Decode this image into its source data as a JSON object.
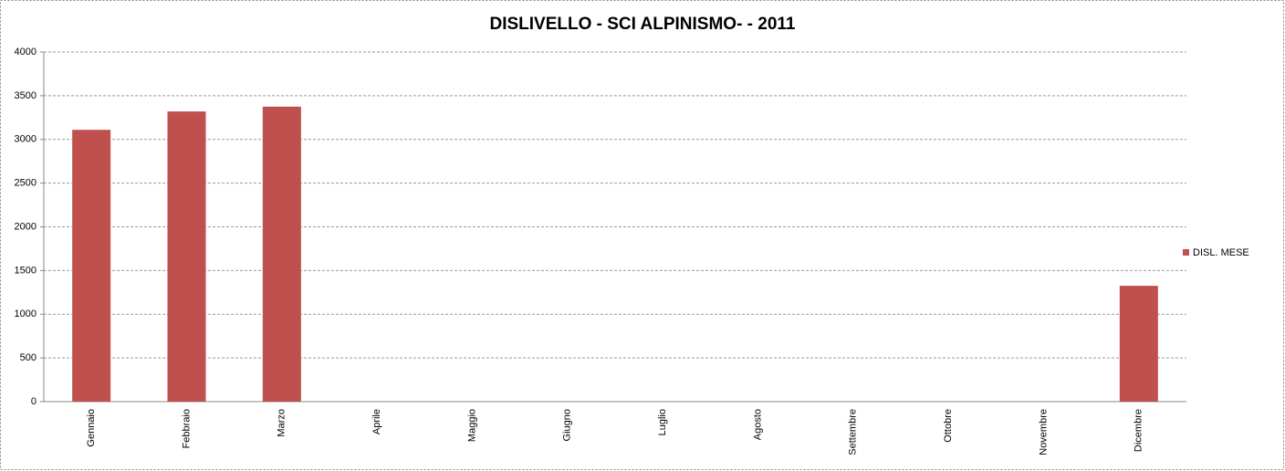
{
  "chart_data": {
    "type": "bar",
    "title": "DISLIVELLO - SCI ALPINISMO- - 2011",
    "categories": [
      "Gennaio",
      "Febbraio",
      "Marzo",
      "Aprile",
      "Maggio",
      "Giugno",
      "Luglio",
      "Agosto",
      "Settembre",
      "Ottobre",
      "Novembre",
      "Dicembre"
    ],
    "series": [
      {
        "name": "DISL. MESE",
        "color": "#c0504d",
        "values": [
          3110,
          3320,
          3375,
          0,
          0,
          0,
          0,
          0,
          0,
          0,
          0,
          1325
        ]
      }
    ],
    "ylim": [
      0,
      4000
    ],
    "yticks": [
      0,
      500,
      1000,
      1500,
      2000,
      2500,
      3000,
      3500,
      4000
    ],
    "grid": true,
    "legend": "right"
  }
}
